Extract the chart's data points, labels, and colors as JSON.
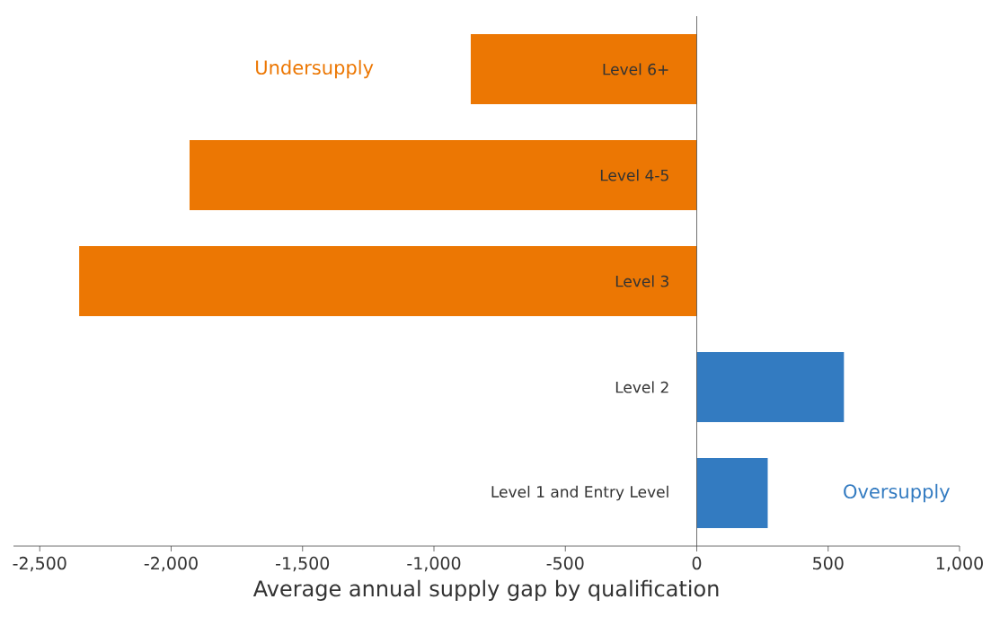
{
  "chart_data": {
    "type": "bar",
    "orientation": "horizontal",
    "xlabel": "Average annual supply gap by qualification",
    "categories": [
      "Level 6+",
      "Level 4-5",
      "Level 3",
      "Level 2",
      "Level 1 and Entry Level"
    ],
    "values": [
      -860,
      -1930,
      -2350,
      560,
      270
    ],
    "colors": [
      "#ec7703",
      "#ec7703",
      "#ec7703",
      "#337bc1",
      "#337bc1"
    ],
    "xlim": [
      -2600,
      1000
    ],
    "xticks": [
      {
        "value": -2500,
        "label": "-2,500"
      },
      {
        "value": -2000,
        "label": "-2,000"
      },
      {
        "value": -1500,
        "label": "-1,500"
      },
      {
        "value": -1000,
        "label": "-1,000"
      },
      -500,
      0,
      500,
      {
        "value": 1000,
        "label": "1,000"
      }
    ],
    "annotations": [
      "Undersupply",
      "Oversupply"
    ]
  }
}
